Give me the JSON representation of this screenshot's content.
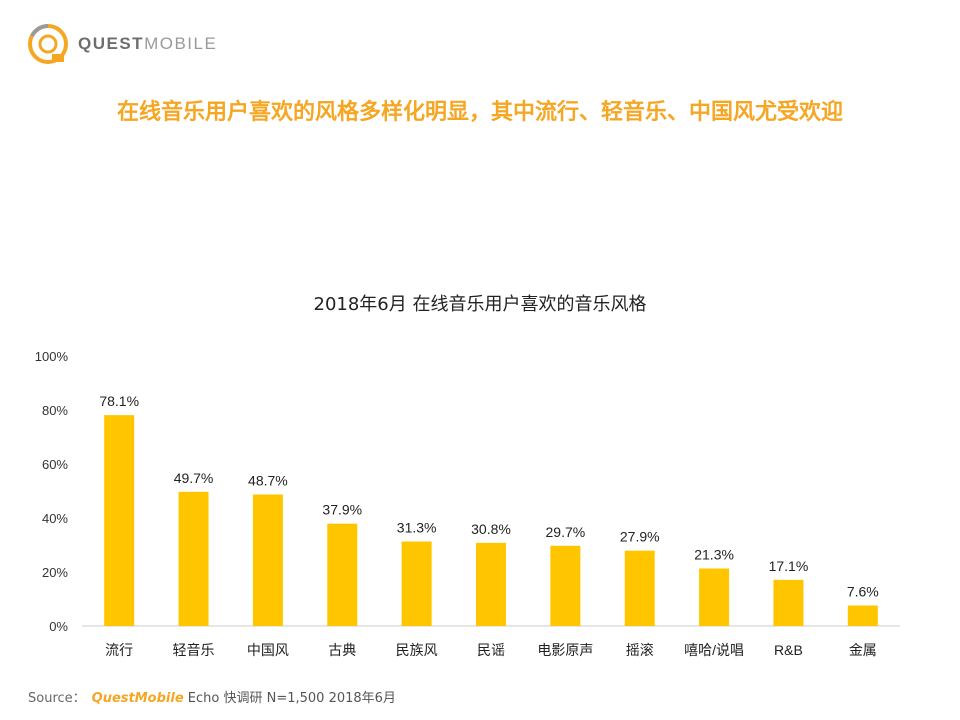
{
  "logo": {
    "text_strong": "QUEST",
    "text_light": "MOBILE",
    "icon": "quest-mobile-logo-icon"
  },
  "headline": "在线音乐用户喜欢的风格多样化明显，其中流行、轻音乐、中国风尤受欢迎",
  "colors": {
    "accent": "#f5a623",
    "bar": "#ffc600",
    "axis": "#cccccc",
    "text": "#222222"
  },
  "chart_data": {
    "type": "bar",
    "title": "2018年6月 在线音乐用户喜欢的音乐风格",
    "categories": [
      "流行",
      "轻音乐",
      "中国风",
      "古典",
      "民族风",
      "民谣",
      "电影原声",
      "摇滚",
      "嘻哈/说唱",
      "R&B",
      "金属"
    ],
    "values": [
      78.1,
      49.7,
      48.7,
      37.9,
      31.3,
      30.8,
      29.7,
      27.9,
      21.3,
      17.1,
      7.6
    ],
    "value_labels": [
      "78.1%",
      "49.7%",
      "48.7%",
      "37.9%",
      "31.3%",
      "30.8%",
      "29.7%",
      "27.9%",
      "21.3%",
      "17.1%",
      "7.6%"
    ],
    "yticks": [
      "0%",
      "20%",
      "40%",
      "60%",
      "80%",
      "100%"
    ],
    "ylim": [
      0,
      100
    ],
    "grid": false,
    "legend": "none"
  },
  "source": {
    "label": "Source：",
    "brand": "QuestMobile",
    "text": "Echo 快调研 N=1,500 2018年6月"
  }
}
